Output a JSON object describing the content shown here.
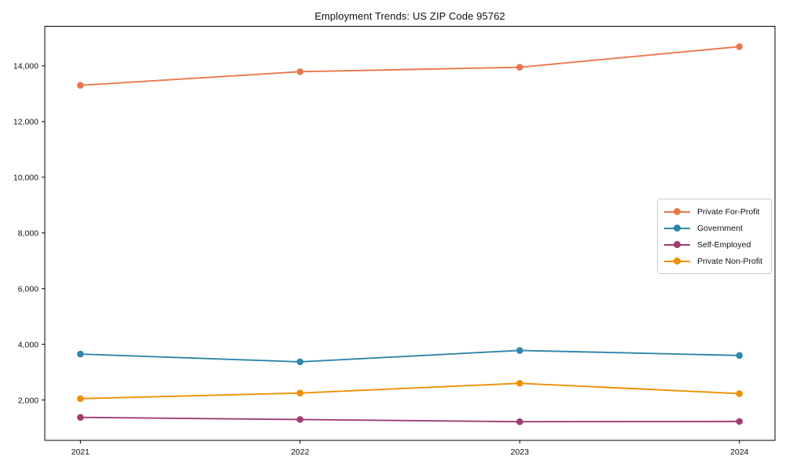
{
  "chart_data": {
    "type": "line",
    "title": "Employment Trends: US ZIP Code 95762",
    "x": [
      "2021",
      "2022",
      "2023",
      "2024"
    ],
    "series": [
      {
        "name": "Private For-Profit",
        "color": "#E8784C",
        "values": [
          13300,
          13790,
          13950,
          14690
        ]
      },
      {
        "name": "Government",
        "color": "#2E86AB",
        "values": [
          3650,
          3370,
          3780,
          3600
        ]
      },
      {
        "name": "Self-Employed",
        "color": "#A23B72",
        "values": [
          1375,
          1300,
          1220,
          1230
        ]
      },
      {
        "name": "Private Non-Profit",
        "color": "#F18F01",
        "values": [
          2050,
          2250,
          2600,
          2230
        ]
      }
    ],
    "yticks": [
      2000,
      4000,
      6000,
      8000,
      10000,
      12000,
      14000
    ],
    "ytick_labels": [
      "2,000",
      "4,000",
      "6,000",
      "8,000",
      "10,000",
      "12,000",
      "14,000"
    ],
    "ylim": [
      550,
      15420
    ],
    "xlabel": "",
    "ylabel": "",
    "grid": false,
    "legend_position": "right-middle",
    "axis_color": "#000000",
    "text_color": "#111111"
  }
}
